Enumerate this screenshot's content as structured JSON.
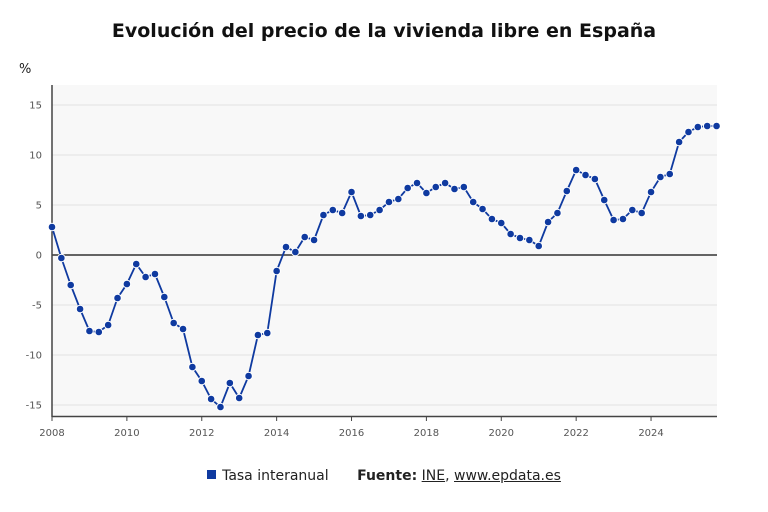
{
  "chart_data": {
    "type": "line",
    "title": "Evolución del precio de la vivienda libre en España",
    "ylabel": "%",
    "xlim": [
      2008,
      2025.75
    ],
    "ylim": [
      -16,
      17
    ],
    "yticks": [
      -15,
      -10,
      -5,
      0,
      5,
      10,
      15
    ],
    "xticks": [
      2008,
      2010,
      2012,
      2014,
      2016,
      2018,
      2020,
      2022,
      2024
    ],
    "grid": true,
    "legend_position": "bottom",
    "series_color": "#0f3aa0",
    "series": [
      {
        "name": "Tasa interanual",
        "x": [
          2008,
          2008.25,
          2008.5,
          2008.75,
          2009,
          2009.25,
          2009.5,
          2009.75,
          2010,
          2010.25,
          2010.5,
          2010.75,
          2011,
          2011.25,
          2011.5,
          2011.75,
          2012,
          2012.25,
          2012.5,
          2012.75,
          2013,
          2013.25,
          2013.5,
          2013.75,
          2014,
          2014.25,
          2014.5,
          2014.75,
          2015,
          2015.25,
          2015.5,
          2015.75,
          2016,
          2016.25,
          2016.5,
          2016.75,
          2017,
          2017.25,
          2017.5,
          2017.75,
          2018,
          2018.25,
          2018.5,
          2018.75,
          2019,
          2019.25,
          2019.5,
          2019.75,
          2020,
          2020.25,
          2020.5,
          2020.75,
          2021,
          2021.25,
          2021.5,
          2021.75,
          2022,
          2022.25,
          2022.5,
          2022.75,
          2023,
          2023.25,
          2023.5,
          2023.75,
          2024,
          2024.25,
          2024.5,
          2024.75,
          2025,
          2025.25,
          2025.5,
          2025.75
        ],
        "values": [
          2.8,
          -0.3,
          -3.0,
          -5.4,
          -7.6,
          -7.7,
          -7.0,
          -4.3,
          -2.9,
          -0.9,
          -2.2,
          -1.9,
          -4.2,
          -6.8,
          -7.4,
          -11.2,
          -12.6,
          -14.4,
          -15.2,
          -12.8,
          -14.3,
          -12.1,
          -8.0,
          -7.8,
          -1.6,
          0.8,
          0.3,
          1.8,
          1.5,
          4.0,
          4.5,
          4.2,
          6.3,
          3.9,
          4.0,
          4.5,
          5.3,
          5.6,
          6.7,
          7.2,
          6.2,
          6.8,
          7.2,
          6.6,
          6.8,
          5.3,
          4.6,
          3.6,
          3.2,
          2.1,
          1.7,
          1.5,
          0.9,
          3.3,
          4.2,
          6.4,
          8.5,
          8.0,
          7.6,
          5.5,
          3.5,
          3.6,
          4.5,
          4.2,
          6.3,
          7.8,
          8.1,
          11.3,
          12.3,
          12.8,
          12.9,
          12.9
        ]
      }
    ]
  },
  "legend": {
    "series_label": "Tasa interanual",
    "source_label": "Fuente:",
    "source_ine": "INE",
    "source_sep": ",",
    "source_site": "www.epdata.es"
  }
}
